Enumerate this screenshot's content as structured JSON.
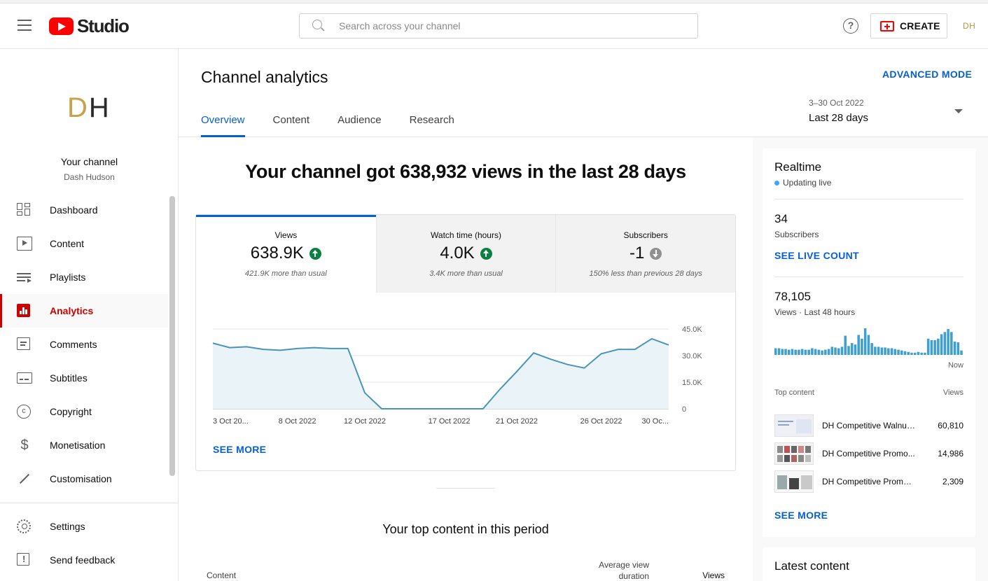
{
  "header": {
    "logo_text": "Studio",
    "search_placeholder": "Search across your channel",
    "help_label": "?",
    "create_label": "CREATE",
    "avatar_initials": "DH"
  },
  "sidebar": {
    "channel_logo_d": "D",
    "channel_logo_h": "H",
    "channel_title": "Your channel",
    "channel_name": "Dash Hudson",
    "items": [
      {
        "label": "Dashboard",
        "icon": "dashboard-icon"
      },
      {
        "label": "Content",
        "icon": "content-icon"
      },
      {
        "label": "Playlists",
        "icon": "playlists-icon"
      },
      {
        "label": "Analytics",
        "icon": "analytics-icon",
        "active": true
      },
      {
        "label": "Comments",
        "icon": "comments-icon"
      },
      {
        "label": "Subtitles",
        "icon": "subtitles-icon"
      },
      {
        "label": "Copyright",
        "icon": "copyright-icon"
      },
      {
        "label": "Monetisation",
        "icon": "monetisation-icon"
      },
      {
        "label": "Customisation",
        "icon": "customisation-icon"
      }
    ],
    "bottom_items": [
      {
        "label": "Settings",
        "icon": "settings-icon"
      },
      {
        "label": "Send feedback",
        "icon": "feedback-icon"
      }
    ]
  },
  "main": {
    "title": "Channel analytics",
    "advanced_mode": "ADVANCED MODE",
    "tabs": [
      {
        "label": "Overview",
        "active": true
      },
      {
        "label": "Content"
      },
      {
        "label": "Audience"
      },
      {
        "label": "Research"
      }
    ],
    "date_range": {
      "dates": "3–30 Oct 2022",
      "label": "Last 28 days"
    },
    "headline": "Your channel got 638,932 views in the last 28 days",
    "metrics": [
      {
        "label": "Views",
        "value": "638.9K",
        "trend": "up",
        "note": "421.9K more than usual"
      },
      {
        "label": "Watch time (hours)",
        "value": "4.0K",
        "trend": "up",
        "note": "3.4K more than usual"
      },
      {
        "label": "Subscribers",
        "value": "-1",
        "trend": "down",
        "note": "150% less than previous 28 days"
      }
    ],
    "see_more": "SEE MORE",
    "top_content_title": "Your top content in this period",
    "top_content_columns": {
      "content": "Content",
      "avg_view_duration": "Average view duration",
      "views": "Views"
    }
  },
  "chart_data": {
    "type": "area",
    "x": [
      "3 Oct",
      "4 Oct",
      "5 Oct",
      "6 Oct",
      "7 Oct",
      "8 Oct",
      "9 Oct",
      "10 Oct",
      "11 Oct",
      "12 Oct",
      "13 Oct",
      "14 Oct",
      "15 Oct",
      "16 Oct",
      "17 Oct",
      "18 Oct",
      "19 Oct",
      "20 Oct",
      "21 Oct",
      "22 Oct",
      "23 Oct",
      "24 Oct",
      "25 Oct",
      "26 Oct",
      "27 Oct",
      "28 Oct",
      "29 Oct",
      "30 Oct"
    ],
    "values": [
      37000,
      34500,
      35000,
      33500,
      33000,
      34000,
      34500,
      34000,
      34000,
      9000,
      0,
      0,
      0,
      0,
      0,
      0,
      0,
      11000,
      21000,
      31500,
      28000,
      25000,
      23000,
      31000,
      33500,
      33500,
      39500,
      36000
    ],
    "x_tick_labels": [
      "3 Oct 20...",
      "8 Oct 2022",
      "12 Oct 2022",
      "17 Oct 2022",
      "21 Oct 2022",
      "26 Oct 2022",
      "30 Oc..."
    ],
    "x_tick_index": [
      0,
      5,
      9,
      14,
      18,
      23,
      27
    ],
    "y_ticks": [
      0,
      15000,
      30000,
      45000
    ],
    "y_tick_labels": [
      "0",
      "15.0K",
      "30.0K",
      "45.0K"
    ],
    "ylim": [
      0,
      45000
    ],
    "title": "",
    "xlabel": "",
    "ylabel": "",
    "grid": true,
    "color": "#4796b9",
    "fill": "#eaf3f8"
  },
  "realtime": {
    "title": "Realtime",
    "live_label": "Updating live",
    "subscribers_value": "34",
    "subscribers_label": "Subscribers",
    "see_live_count": "SEE LIVE COUNT",
    "views_value": "78,105",
    "views_label": "Views · Last 48 hours",
    "now_label": "Now",
    "top_content_label": "Top content",
    "views_col_label": "Views",
    "bar_values": [
      9,
      9,
      8,
      8,
      7,
      8,
      7,
      7,
      8,
      7,
      7,
      9,
      8,
      7,
      6,
      7,
      8,
      11,
      10,
      9,
      11,
      26,
      12,
      16,
      14,
      27,
      22,
      36,
      27,
      16,
      11,
      11,
      10,
      10,
      9,
      9,
      8,
      7,
      6,
      5,
      4,
      3,
      3,
      4,
      3,
      3,
      22,
      20,
      20,
      22,
      28,
      31,
      35,
      31,
      18,
      17,
      6
    ],
    "bars_max": 36,
    "bar_color": "#3f9fcf",
    "see_more": "SEE MORE",
    "items": [
      {
        "title": "DH Competitive Walnut...",
        "views": "60,810"
      },
      {
        "title": "DH Competitive Promo...",
        "views": "14,986"
      },
      {
        "title": "DH Competitive Promo ...",
        "views": "2,309"
      }
    ]
  },
  "latest": {
    "title": "Latest content"
  }
}
